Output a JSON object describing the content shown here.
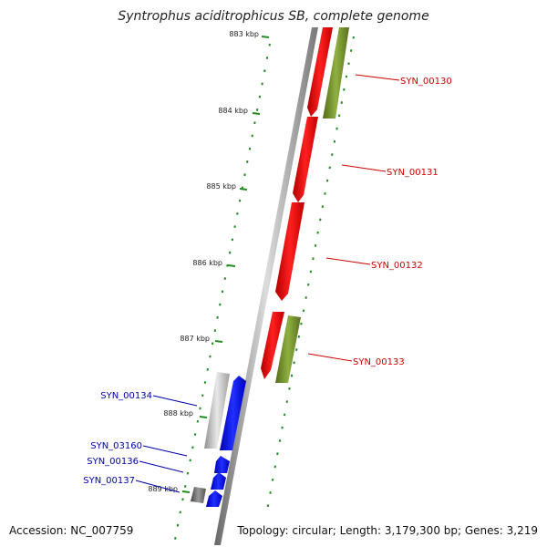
{
  "title": "Syntrophus aciditrophicus SB, complete genome",
  "footer": {
    "accession": "Accession: NC_007759",
    "topology": "Topology: circular; Length: 3,179,300 bp; Genes: 3,219"
  },
  "ticks": [
    "883 kbp",
    "884 kbp",
    "885 kbp",
    "886 kbp",
    "887 kbp",
    "888 kbp",
    "889 kbp"
  ],
  "genes_right": [
    {
      "label": "SYN_00130",
      "color": "#cc0000"
    },
    {
      "label": "SYN_00131",
      "color": "#cc0000"
    },
    {
      "label": "SYN_00132",
      "color": "#cc0000"
    },
    {
      "label": "SYN_00133",
      "color": "#cc0000"
    }
  ],
  "genes_left": [
    {
      "label": "SYN_00134",
      "color": "#0000aa"
    },
    {
      "label": "SYN_03160",
      "color": "#0000aa"
    },
    {
      "label": "SYN_00136",
      "color": "#0000aa"
    },
    {
      "label": "SYN_00137",
      "color": "#0000aa"
    }
  ],
  "colors": {
    "forward_gene": "#ff0000",
    "reverse_gene": "#0000ff",
    "feature_green": "#6b8e23",
    "feature_gray": "#b0b0b0",
    "backbone": "#888888",
    "tick": "#228b22"
  }
}
